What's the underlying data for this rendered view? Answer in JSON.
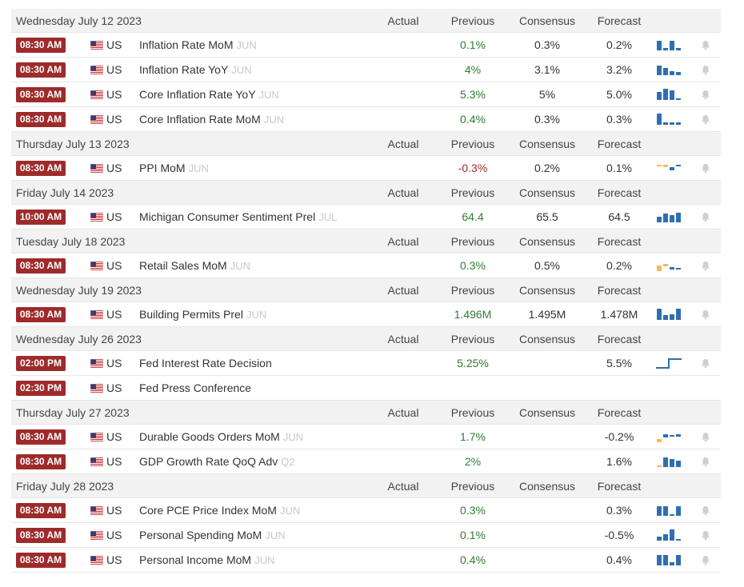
{
  "columns": {
    "actual": "Actual",
    "previous": "Previous",
    "consensus": "Consensus",
    "forecast": "Forecast"
  },
  "colors": {
    "time_badge": "#9e2b2b",
    "positive": "#2f7d32",
    "negative": "#a12b2b",
    "spark_blue": "#2f6fb1",
    "spark_orange": "#f4b960",
    "bell": "#c8c8c8"
  },
  "days": [
    {
      "date": "Wednesday July 12 2023",
      "events": [
        {
          "time": "08:30 AM",
          "country": "US",
          "name": "Inflation Rate MoM",
          "period": "JUN",
          "actual": "",
          "previous": "0.1%",
          "previous_dir": "pos",
          "consensus": "0.3%",
          "forecast": "0.2%",
          "spark": "ii-bars-1"
        },
        {
          "time": "08:30 AM",
          "country": "US",
          "name": "Inflation Rate YoY",
          "period": "JUN",
          "actual": "",
          "previous": "4%",
          "previous_dir": "pos",
          "consensus": "3.1%",
          "forecast": "3.2%",
          "spark": "ii-bars-2"
        },
        {
          "time": "08:30 AM",
          "country": "US",
          "name": "Core Inflation Rate YoY",
          "period": "JUN",
          "actual": "",
          "previous": "5.3%",
          "previous_dir": "pos",
          "consensus": "5%",
          "forecast": "5.0%",
          "spark": "ii-bars-3"
        },
        {
          "time": "08:30 AM",
          "country": "US",
          "name": "Core Inflation Rate MoM",
          "period": "JUN",
          "actual": "",
          "previous": "0.4%",
          "previous_dir": "pos",
          "consensus": "0.3%",
          "forecast": "0.3%",
          "spark": "ii-bars-4"
        }
      ]
    },
    {
      "date": "Thursday July 13 2023",
      "events": [
        {
          "time": "08:30 AM",
          "country": "US",
          "name": "PPI MoM",
          "period": "JUN",
          "actual": "",
          "previous": "-0.3%",
          "previous_dir": "neg",
          "consensus": "0.2%",
          "forecast": "0.1%",
          "spark": "ii-bars-5"
        }
      ]
    },
    {
      "date": "Friday July 14 2023",
      "events": [
        {
          "time": "10:00 AM",
          "country": "US",
          "name": "Michigan Consumer Sentiment Prel",
          "period": "JUL",
          "actual": "",
          "previous": "64.4",
          "previous_dir": "pos",
          "consensus": "65.5",
          "forecast": "64.5",
          "spark": "ii-bars-6"
        }
      ]
    },
    {
      "date": "Tuesday July 18 2023",
      "events": [
        {
          "time": "08:30 AM",
          "country": "US",
          "name": "Retail Sales MoM",
          "period": "JUN",
          "actual": "",
          "previous": "0.3%",
          "previous_dir": "pos",
          "consensus": "0.5%",
          "forecast": "0.2%",
          "spark": "ii-bars-7"
        }
      ]
    },
    {
      "date": "Wednesday July 19 2023",
      "events": [
        {
          "time": "08:30 AM",
          "country": "US",
          "name": "Building Permits Prel",
          "period": "JUN",
          "actual": "",
          "previous": "1.496M",
          "previous_dir": "pos",
          "consensus": "1.495M",
          "forecast": "1.478M",
          "spark": "ii-bars-8"
        }
      ]
    },
    {
      "date": "Wednesday July 26 2023",
      "events": [
        {
          "time": "02:00 PM",
          "country": "US",
          "name": "Fed Interest Rate Decision",
          "period": "",
          "actual": "",
          "previous": "5.25%",
          "previous_dir": "pos",
          "consensus": "",
          "forecast": "5.5%",
          "spark": "step-line"
        },
        {
          "time": "02:30 PM",
          "country": "US",
          "name": "Fed Press Conference",
          "period": "",
          "actual": "",
          "previous": "",
          "previous_dir": "",
          "consensus": "",
          "forecast": "",
          "spark": ""
        }
      ]
    },
    {
      "date": "Thursday July 27 2023",
      "events": [
        {
          "time": "08:30 AM",
          "country": "US",
          "name": "Durable Goods Orders MoM",
          "period": "JUN",
          "actual": "",
          "previous": "1.7%",
          "previous_dir": "pos",
          "consensus": "",
          "forecast": "-0.2%",
          "spark": "ii-bars-9"
        },
        {
          "time": "08:30 AM",
          "country": "US",
          "name": "GDP Growth Rate QoQ Adv",
          "period": "Q2",
          "actual": "",
          "previous": "2%",
          "previous_dir": "pos",
          "consensus": "",
          "forecast": "1.6%",
          "spark": "ii-bars-10"
        }
      ]
    },
    {
      "date": "Friday July 28 2023",
      "events": [
        {
          "time": "08:30 AM",
          "country": "US",
          "name": "Core PCE Price Index MoM",
          "period": "JUN",
          "actual": "",
          "previous": "0.3%",
          "previous_dir": "pos",
          "consensus": "",
          "forecast": "0.3%",
          "spark": "ii-bars-11"
        },
        {
          "time": "08:30 AM",
          "country": "US",
          "name": "Personal Spending MoM",
          "period": "JUN",
          "actual": "",
          "previous": "0.1%",
          "previous_dir": "pos",
          "consensus": "",
          "forecast": "-0.5%",
          "spark": "ii-bars-12"
        },
        {
          "time": "08:30 AM",
          "country": "US",
          "name": "Personal Income MoM",
          "period": "JUN",
          "actual": "",
          "previous": "0.4%",
          "previous_dir": "pos",
          "consensus": "",
          "forecast": "0.4%",
          "spark": "ii-bars-13"
        }
      ]
    }
  ]
}
